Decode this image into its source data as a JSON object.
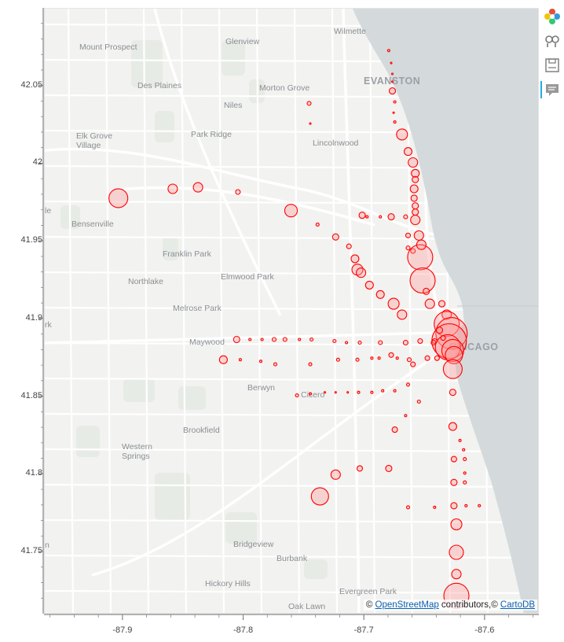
{
  "chart_data": {
    "type": "scatter",
    "title": "",
    "xlabel": "",
    "ylabel": "",
    "xlim": [
      -87.965,
      -87.555
    ],
    "ylim": [
      41.71,
      42.1
    ],
    "x_ticks": [
      "-87.9",
      "-87.8",
      "-87.7",
      "-87.6"
    ],
    "y_ticks": [
      "41.75",
      "41.8",
      "41.85",
      "41.9",
      "41.95",
      "42",
      "42.05"
    ],
    "marker_color": "#ff0000",
    "marker_fill": "rgba(255,150,150,0.35)",
    "points": [
      {
        "x": -87.904,
        "y": 41.978,
        "r": 12
      },
      {
        "x": -87.859,
        "y": 41.984,
        "r": 6
      },
      {
        "x": -87.838,
        "y": 41.985,
        "r": 6
      },
      {
        "x": -87.805,
        "y": 41.982,
        "r": 3
      },
      {
        "x": -87.761,
        "y": 41.97,
        "r": 8
      },
      {
        "x": -87.739,
        "y": 41.961,
        "r": 2
      },
      {
        "x": -87.746,
        "y": 42.039,
        "r": 2.5
      },
      {
        "x": -87.745,
        "y": 42.026,
        "r": 1
      },
      {
        "x": -87.724,
        "y": 41.953,
        "r": 4
      },
      {
        "x": -87.713,
        "y": 41.947,
        "r": 3
      },
      {
        "x": -87.708,
        "y": 41.939,
        "r": 5
      },
      {
        "x": -87.706,
        "y": 41.932,
        "r": 7
      },
      {
        "x": -87.703,
        "y": 41.93,
        "r": 6
      },
      {
        "x": -87.696,
        "y": 41.922,
        "r": 5
      },
      {
        "x": -87.687,
        "y": 41.916,
        "r": 5
      },
      {
        "x": -87.676,
        "y": 41.91,
        "r": 7
      },
      {
        "x": -87.669,
        "y": 41.903,
        "r": 6
      },
      {
        "x": -87.702,
        "y": 41.967,
        "r": 4
      },
      {
        "x": -87.698,
        "y": 41.966,
        "r": 1.5
      },
      {
        "x": -87.687,
        "y": 41.966,
        "r": 1.5
      },
      {
        "x": -87.678,
        "y": 41.966,
        "r": 4
      },
      {
        "x": -87.666,
        "y": 41.966,
        "r": 2.5
      },
      {
        "x": -87.664,
        "y": 41.954,
        "r": 3
      },
      {
        "x": -87.664,
        "y": 41.946,
        "r": 2.5
      },
      {
        "x": -87.66,
        "y": 41.944,
        "r": 3
      },
      {
        "x": -87.654,
        "y": 41.94,
        "r": 16
      },
      {
        "x": -87.652,
        "y": 41.925,
        "r": 16
      },
      {
        "x": -87.649,
        "y": 41.918,
        "r": 4
      },
      {
        "x": -87.646,
        "y": 41.91,
        "r": 6
      },
      {
        "x": -87.636,
        "y": 41.91,
        "r": 4
      },
      {
        "x": -87.632,
        "y": 41.903,
        "r": 6
      },
      {
        "x": -87.632,
        "y": 41.897,
        "r": 16
      },
      {
        "x": -87.628,
        "y": 41.891,
        "r": 20
      },
      {
        "x": -87.63,
        "y": 41.886,
        "r": 22
      },
      {
        "x": -87.631,
        "y": 41.882,
        "r": 16
      },
      {
        "x": -87.627,
        "y": 41.88,
        "r": 14
      },
      {
        "x": -87.626,
        "y": 41.877,
        "r": 11
      },
      {
        "x": -87.627,
        "y": 41.868,
        "r": 12
      },
      {
        "x": -87.638,
        "y": 41.893,
        "r": 4
      },
      {
        "x": -87.635,
        "y": 41.888,
        "r": 3
      },
      {
        "x": -87.64,
        "y": 41.875,
        "r": 3
      },
      {
        "x": -87.648,
        "y": 41.875,
        "r": 3
      },
      {
        "x": -87.642,
        "y": 41.886,
        "r": 3
      },
      {
        "x": -87.643,
        "y": 41.885,
        "r": 3
      },
      {
        "x": -87.654,
        "y": 41.886,
        "r": 3
      },
      {
        "x": -87.666,
        "y": 41.885,
        "r": 3
      },
      {
        "x": -87.678,
        "y": 41.877,
        "r": 3
      },
      {
        "x": -87.687,
        "y": 41.885,
        "r": 2.5
      },
      {
        "x": -87.704,
        "y": 41.885,
        "r": 2
      },
      {
        "x": -87.715,
        "y": 41.885,
        "r": 1.5
      },
      {
        "x": -87.725,
        "y": 41.886,
        "r": 2
      },
      {
        "x": -87.744,
        "y": 41.887,
        "r": 2
      },
      {
        "x": -87.754,
        "y": 41.887,
        "r": 1.5
      },
      {
        "x": -87.766,
        "y": 41.887,
        "r": 2.5
      },
      {
        "x": -87.775,
        "y": 41.887,
        "r": 2.5
      },
      {
        "x": -87.785,
        "y": 41.887,
        "r": 1.5
      },
      {
        "x": -87.795,
        "y": 41.887,
        "r": 1.5
      },
      {
        "x": -87.806,
        "y": 41.887,
        "r": 4
      },
      {
        "x": -87.817,
        "y": 41.874,
        "r": 5
      },
      {
        "x": -87.803,
        "y": 41.874,
        "r": 1.5
      },
      {
        "x": -87.786,
        "y": 41.873,
        "r": 1.5
      },
      {
        "x": -87.774,
        "y": 41.871,
        "r": 2
      },
      {
        "x": -87.745,
        "y": 41.871,
        "r": 2
      },
      {
        "x": -87.722,
        "y": 41.874,
        "r": 2
      },
      {
        "x": -87.706,
        "y": 41.874,
        "r": 2
      },
      {
        "x": -87.688,
        "y": 41.875,
        "r": 1.5
      },
      {
        "x": -87.673,
        "y": 41.875,
        "r": 1.5
      },
      {
        "x": -87.663,
        "y": 41.874,
        "r": 2.5
      },
      {
        "x": -87.66,
        "y": 41.871,
        "r": 3
      },
      {
        "x": -87.694,
        "y": 41.875,
        "r": 1.5
      },
      {
        "x": -87.756,
        "y": 41.851,
        "r": 2
      },
      {
        "x": -87.745,
        "y": 41.852,
        "r": 1.5
      },
      {
        "x": -87.733,
        "y": 41.853,
        "r": 1
      },
      {
        "x": -87.724,
        "y": 41.853,
        "r": 1
      },
      {
        "x": -87.714,
        "y": 41.853,
        "r": 1
      },
      {
        "x": -87.705,
        "y": 41.853,
        "r": 1.5
      },
      {
        "x": -87.694,
        "y": 41.853,
        "r": 1.5
      },
      {
        "x": -87.685,
        "y": 41.854,
        "r": 1.5
      },
      {
        "x": -87.675,
        "y": 41.854,
        "r": 1.5
      },
      {
        "x": -87.664,
        "y": 41.858,
        "r": 2
      },
      {
        "x": -87.627,
        "y": 41.853,
        "r": 4
      },
      {
        "x": -87.655,
        "y": 41.847,
        "r": 2
      },
      {
        "x": -87.666,
        "y": 41.838,
        "r": 1.5
      },
      {
        "x": -87.675,
        "y": 41.829,
        "r": 3.5
      },
      {
        "x": -87.627,
        "y": 41.831,
        "r": 5
      },
      {
        "x": -87.621,
        "y": 41.822,
        "r": 1.5
      },
      {
        "x": -87.618,
        "y": 41.816,
        "r": 1.5
      },
      {
        "x": -87.617,
        "y": 41.81,
        "r": 2
      },
      {
        "x": -87.626,
        "y": 41.81,
        "r": 3.5
      },
      {
        "x": -87.617,
        "y": 41.801,
        "r": 1.5
      },
      {
        "x": -87.617,
        "y": 41.795,
        "r": 2
      },
      {
        "x": -87.626,
        "y": 41.795,
        "r": 4
      },
      {
        "x": -87.68,
        "y": 41.804,
        "r": 4
      },
      {
        "x": -87.704,
        "y": 41.804,
        "r": 3.5
      },
      {
        "x": -87.724,
        "y": 41.8,
        "r": 6
      },
      {
        "x": -87.737,
        "y": 41.786,
        "r": 11
      },
      {
        "x": -87.626,
        "y": 41.78,
        "r": 4
      },
      {
        "x": -87.616,
        "y": 41.78,
        "r": 1.5
      },
      {
        "x": -87.605,
        "y": 41.78,
        "r": 1.5
      },
      {
        "x": -87.642,
        "y": 41.779,
        "r": 1.5
      },
      {
        "x": -87.664,
        "y": 41.779,
        "r": 2
      },
      {
        "x": -87.624,
        "y": 41.768,
        "r": 7
      },
      {
        "x": -87.624,
        "y": 41.75,
        "r": 9
      },
      {
        "x": -87.624,
        "y": 41.736,
        "r": 6
      },
      {
        "x": -87.624,
        "y": 41.722,
        "r": 16
      },
      {
        "x": -87.68,
        "y": 42.073,
        "r": 1.5
      },
      {
        "x": -87.678,
        "y": 42.065,
        "r": 1
      },
      {
        "x": -87.677,
        "y": 42.058,
        "r": 1
      },
      {
        "x": -87.677,
        "y": 42.053,
        "r": 1
      },
      {
        "x": -87.677,
        "y": 42.047,
        "r": 4
      },
      {
        "x": -87.675,
        "y": 42.04,
        "r": 1.5
      },
      {
        "x": -87.676,
        "y": 42.033,
        "r": 1
      },
      {
        "x": -87.675,
        "y": 42.027,
        "r": 1.5
      },
      {
        "x": -87.669,
        "y": 42.019,
        "r": 7
      },
      {
        "x": -87.664,
        "y": 42.008,
        "r": 5
      },
      {
        "x": -87.66,
        "y": 42.001,
        "r": 6
      },
      {
        "x": -87.658,
        "y": 41.994,
        "r": 5
      },
      {
        "x": -87.658,
        "y": 41.99,
        "r": 4
      },
      {
        "x": -87.659,
        "y": 41.984,
        "r": 5
      },
      {
        "x": -87.659,
        "y": 41.978,
        "r": 4
      },
      {
        "x": -87.658,
        "y": 41.973,
        "r": 4
      },
      {
        "x": -87.658,
        "y": 41.969,
        "r": 4
      },
      {
        "x": -87.658,
        "y": 41.964,
        "r": 6
      },
      {
        "x": -87.655,
        "y": 41.954,
        "r": 6
      },
      {
        "x": -87.653,
        "y": 41.948,
        "r": 6
      }
    ]
  },
  "map": {
    "land_color": "#f2f2f0",
    "water_color": "#d4dadc",
    "road_color": "#ffffff",
    "park_color": "#dfe6dd",
    "places": [
      {
        "name": "Wilmette",
        "big": false
      },
      {
        "name": "Glenview",
        "big": false
      },
      {
        "name": "Mount Prospect",
        "big": false
      },
      {
        "name": "EVANSTON",
        "big": true
      },
      {
        "name": "Morton Grove",
        "big": false
      },
      {
        "name": "Des Plaines",
        "big": false
      },
      {
        "name": "Niles",
        "big": false
      },
      {
        "name": "Park Ridge",
        "big": false
      },
      {
        "name": "Elk Grove",
        "big": false
      },
      {
        "name": "Village",
        "big": false
      },
      {
        "name": "Lincolnwood",
        "big": false
      },
      {
        "name": "Bensenville",
        "big": false
      },
      {
        "name": "Franklin Park",
        "big": false
      },
      {
        "name": "Northlake",
        "big": false
      },
      {
        "name": "Elmwood Park",
        "big": false
      },
      {
        "name": "Melrose Park",
        "big": false
      },
      {
        "name": "Maywood",
        "big": false
      },
      {
        "name": "CHICAGO",
        "big": true
      },
      {
        "name": "Berwyn",
        "big": false
      },
      {
        "name": "Cicero",
        "big": false
      },
      {
        "name": "Brookfield",
        "big": false
      },
      {
        "name": "Western",
        "big": false
      },
      {
        "name": "Springs",
        "big": false
      },
      {
        "name": "Bridgeview",
        "big": false
      },
      {
        "name": "Burbank",
        "big": false
      },
      {
        "name": "Hickory Hills",
        "big": false
      },
      {
        "name": "Evergreen Park",
        "big": false
      },
      {
        "name": "Oak Lawn",
        "big": false
      },
      {
        "name": "le",
        "big": false
      },
      {
        "name": "rk",
        "big": false
      },
      {
        "name": "n",
        "big": false
      }
    ]
  },
  "attribution": {
    "prefix": "© ",
    "osm": "OpenStreetMap",
    "middle": " contributors,© ",
    "carto": "CartoDB"
  },
  "toolbar": {
    "tools": [
      "bokeh-logo-icon",
      "pan-icon",
      "save-icon",
      "hover-icon"
    ]
  }
}
